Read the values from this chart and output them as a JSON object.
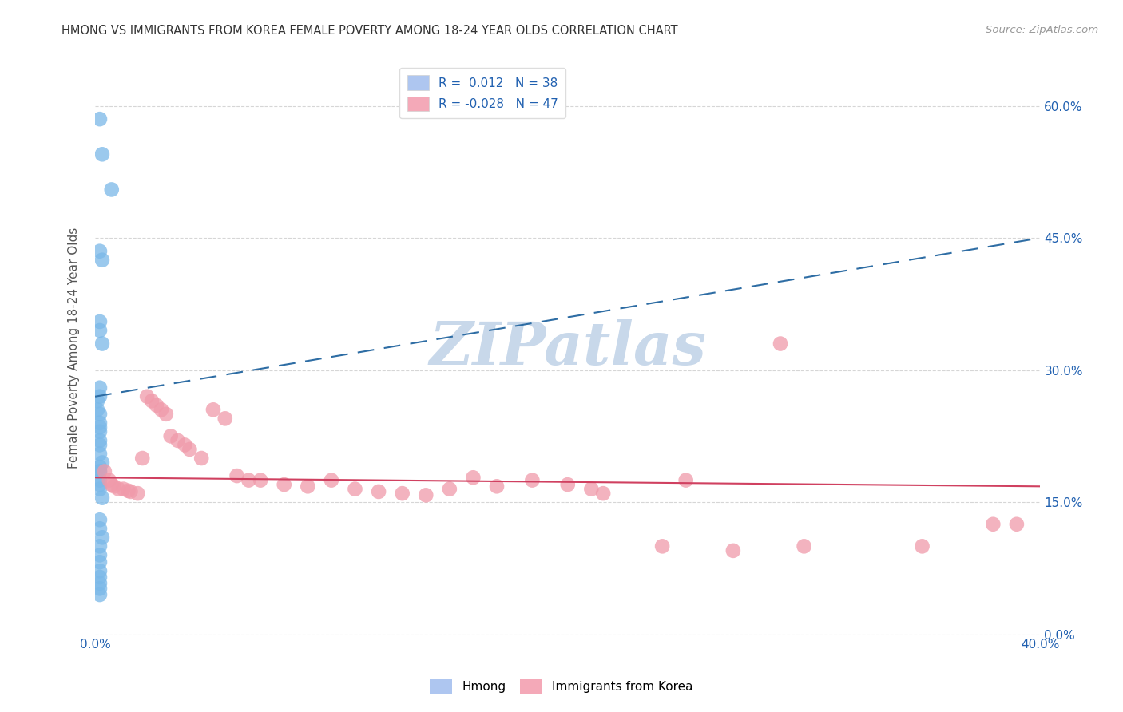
{
  "title": "HMONG VS IMMIGRANTS FROM KOREA FEMALE POVERTY AMONG 18-24 YEAR OLDS CORRELATION CHART",
  "source": "Source: ZipAtlas.com",
  "ylabel": "Female Poverty Among 18-24 Year Olds",
  "xlim": [
    0.0,
    0.4
  ],
  "ylim": [
    0.0,
    0.65
  ],
  "xtick_positions": [
    0.0,
    0.05,
    0.1,
    0.15,
    0.2,
    0.25,
    0.3,
    0.35,
    0.4
  ],
  "xtick_labels": [
    "0.0%",
    "",
    "",
    "",
    "",
    "",
    "",
    "",
    "40.0%"
  ],
  "ytick_positions": [
    0.0,
    0.15,
    0.3,
    0.45,
    0.6
  ],
  "ytick_labels": [
    "0.0%",
    "15.0%",
    "30.0%",
    "45.0%",
    "60.0%"
  ],
  "hmong_color": "#7ab8e8",
  "korea_color": "#f09aaa",
  "hmong_line_color": "#2e6da4",
  "korea_line_color": "#d04060",
  "watermark_color": "#c8d8ea",
  "hmong_line_y0": 0.27,
  "hmong_line_y1": 0.45,
  "korea_line_y0": 0.178,
  "korea_line_y1": 0.168,
  "hmong_x": [
    0.002,
    0.003,
    0.007,
    0.002,
    0.003,
    0.002,
    0.002,
    0.003,
    0.002,
    0.002,
    0.001,
    0.001,
    0.002,
    0.002,
    0.002,
    0.002,
    0.002,
    0.002,
    0.002,
    0.003,
    0.002,
    0.002,
    0.002,
    0.002,
    0.002,
    0.002,
    0.003,
    0.002,
    0.002,
    0.003,
    0.002,
    0.002,
    0.002,
    0.002,
    0.002,
    0.002,
    0.002,
    0.002
  ],
  "hmong_y": [
    0.585,
    0.545,
    0.505,
    0.435,
    0.425,
    0.355,
    0.345,
    0.33,
    0.28,
    0.27,
    0.265,
    0.255,
    0.25,
    0.24,
    0.235,
    0.23,
    0.22,
    0.215,
    0.205,
    0.195,
    0.19,
    0.185,
    0.185,
    0.175,
    0.17,
    0.165,
    0.155,
    0.13,
    0.12,
    0.11,
    0.1,
    0.09,
    0.082,
    0.072,
    0.065,
    0.058,
    0.052,
    0.045
  ],
  "korea_x": [
    0.004,
    0.006,
    0.007,
    0.008,
    0.01,
    0.012,
    0.014,
    0.015,
    0.018,
    0.02,
    0.022,
    0.024,
    0.026,
    0.028,
    0.03,
    0.032,
    0.035,
    0.038,
    0.04,
    0.045,
    0.05,
    0.055,
    0.06,
    0.065,
    0.07,
    0.08,
    0.09,
    0.1,
    0.11,
    0.12,
    0.13,
    0.14,
    0.15,
    0.16,
    0.17,
    0.185,
    0.2,
    0.21,
    0.215,
    0.24,
    0.25,
    0.27,
    0.29,
    0.3,
    0.35,
    0.38,
    0.39
  ],
  "korea_y": [
    0.185,
    0.175,
    0.17,
    0.168,
    0.165,
    0.165,
    0.163,
    0.162,
    0.16,
    0.2,
    0.27,
    0.265,
    0.26,
    0.255,
    0.25,
    0.225,
    0.22,
    0.215,
    0.21,
    0.2,
    0.255,
    0.245,
    0.18,
    0.175,
    0.175,
    0.17,
    0.168,
    0.175,
    0.165,
    0.162,
    0.16,
    0.158,
    0.165,
    0.178,
    0.168,
    0.175,
    0.17,
    0.165,
    0.16,
    0.1,
    0.175,
    0.095,
    0.33,
    0.1,
    0.1,
    0.125,
    0.125
  ],
  "legend1_label": "R =  0.012   N = 38",
  "legend2_label": "R = -0.028   N = 47",
  "legend1_color": "#aec6f0",
  "legend2_color": "#f4a9b8",
  "bottom_legend1": "Hmong",
  "bottom_legend2": "Immigrants from Korea"
}
